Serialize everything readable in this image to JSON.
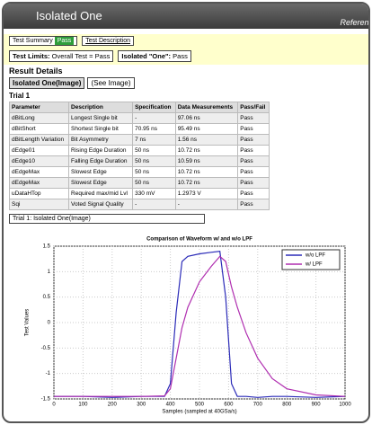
{
  "header": {
    "title": "Isolated One",
    "right": "Reference"
  },
  "tabs": {
    "summary": "Test Summary",
    "status": "Pass",
    "description": "Test Description"
  },
  "limits": {
    "label": "Test Limits:",
    "overall": "Overall Test = Pass",
    "test_label": "Isolated \"One\":",
    "test_status": "Pass"
  },
  "section": {
    "title": "Result Details",
    "image_label": "Isolated One(Image)",
    "image_link": "(See Image)",
    "trial": "Trial 1"
  },
  "table": {
    "headers": [
      "Parameter",
      "Description",
      "Specification",
      "Data Measurements",
      "Pass/Fail"
    ],
    "rows": [
      [
        "dBitLong",
        "Longest Single bit",
        "-",
        "97.06 ns",
        "Pass"
      ],
      [
        "dBitShort",
        "Shortest Single bit",
        "70.95 ns",
        "95.49 ns",
        "Pass"
      ],
      [
        "dBitLength Variation",
        "Bit Asymmetry",
        "7 ns",
        "1.56 ns",
        "Pass"
      ],
      [
        "dEdge01",
        "Rising Edge Duration",
        "50 ns",
        "10.72 ns",
        "Pass"
      ],
      [
        "dEdge10",
        "Falling Edge Duration",
        "50 ns",
        "10.59 ns",
        "Pass"
      ],
      [
        "dEdgeMax",
        "Slowest Edge",
        "50 ns",
        "10.72 ns",
        "Pass"
      ],
      [
        "dEdgeMax",
        "Slowest Edge",
        "50 ns",
        "10.72 ns",
        "Pass"
      ],
      [
        "uDataHTop",
        "Required max/mid Lvl",
        "330 mV",
        "1.2973 V",
        "Pass"
      ],
      [
        "Sqi",
        "Voted Signal Quality",
        "-",
        "-",
        "Pass"
      ]
    ]
  },
  "caption": "Trial 1: Isolated One(Image)",
  "chart_data": {
    "type": "line",
    "title": "Comparison of Waveform w/ and w/o LPF",
    "x_label": "Samples (sampled at 40GSa/s)",
    "y_label": "Test Values",
    "x": [
      0,
      100,
      200,
      300,
      380,
      400,
      420,
      440,
      460,
      500,
      540,
      570,
      590,
      610,
      630,
      660,
      700,
      750,
      800,
      900,
      1000
    ],
    "series": [
      {
        "name": "w/o LPF",
        "color": "#2b2bb8",
        "values": [
          -1.45,
          -1.45,
          -1.47,
          -1.45,
          -1.45,
          -1.2,
          0.2,
          1.2,
          1.3,
          1.35,
          1.38,
          1.4,
          0.5,
          -1.2,
          -1.45,
          -1.45,
          -1.47,
          -1.45,
          -1.45,
          -1.47,
          -1.45
        ]
      },
      {
        "name": "w/ LPF",
        "color": "#b02fb0",
        "values": [
          -1.45,
          -1.45,
          -1.45,
          -1.45,
          -1.44,
          -1.3,
          -0.7,
          -0.1,
          0.3,
          0.8,
          1.1,
          1.3,
          1.2,
          0.7,
          0.3,
          -0.2,
          -0.7,
          -1.1,
          -1.3,
          -1.42,
          -1.45
        ]
      }
    ],
    "xlim": [
      0,
      1000
    ],
    "ylim": [
      -1.5,
      1.5
    ],
    "xticks": [
      0,
      100,
      200,
      300,
      400,
      500,
      600,
      700,
      800,
      900,
      1000
    ],
    "yticks": [
      -1.5,
      -1,
      -0.5,
      0,
      0.5,
      1,
      1.5
    ],
    "grid": true,
    "legend": "upper right"
  }
}
